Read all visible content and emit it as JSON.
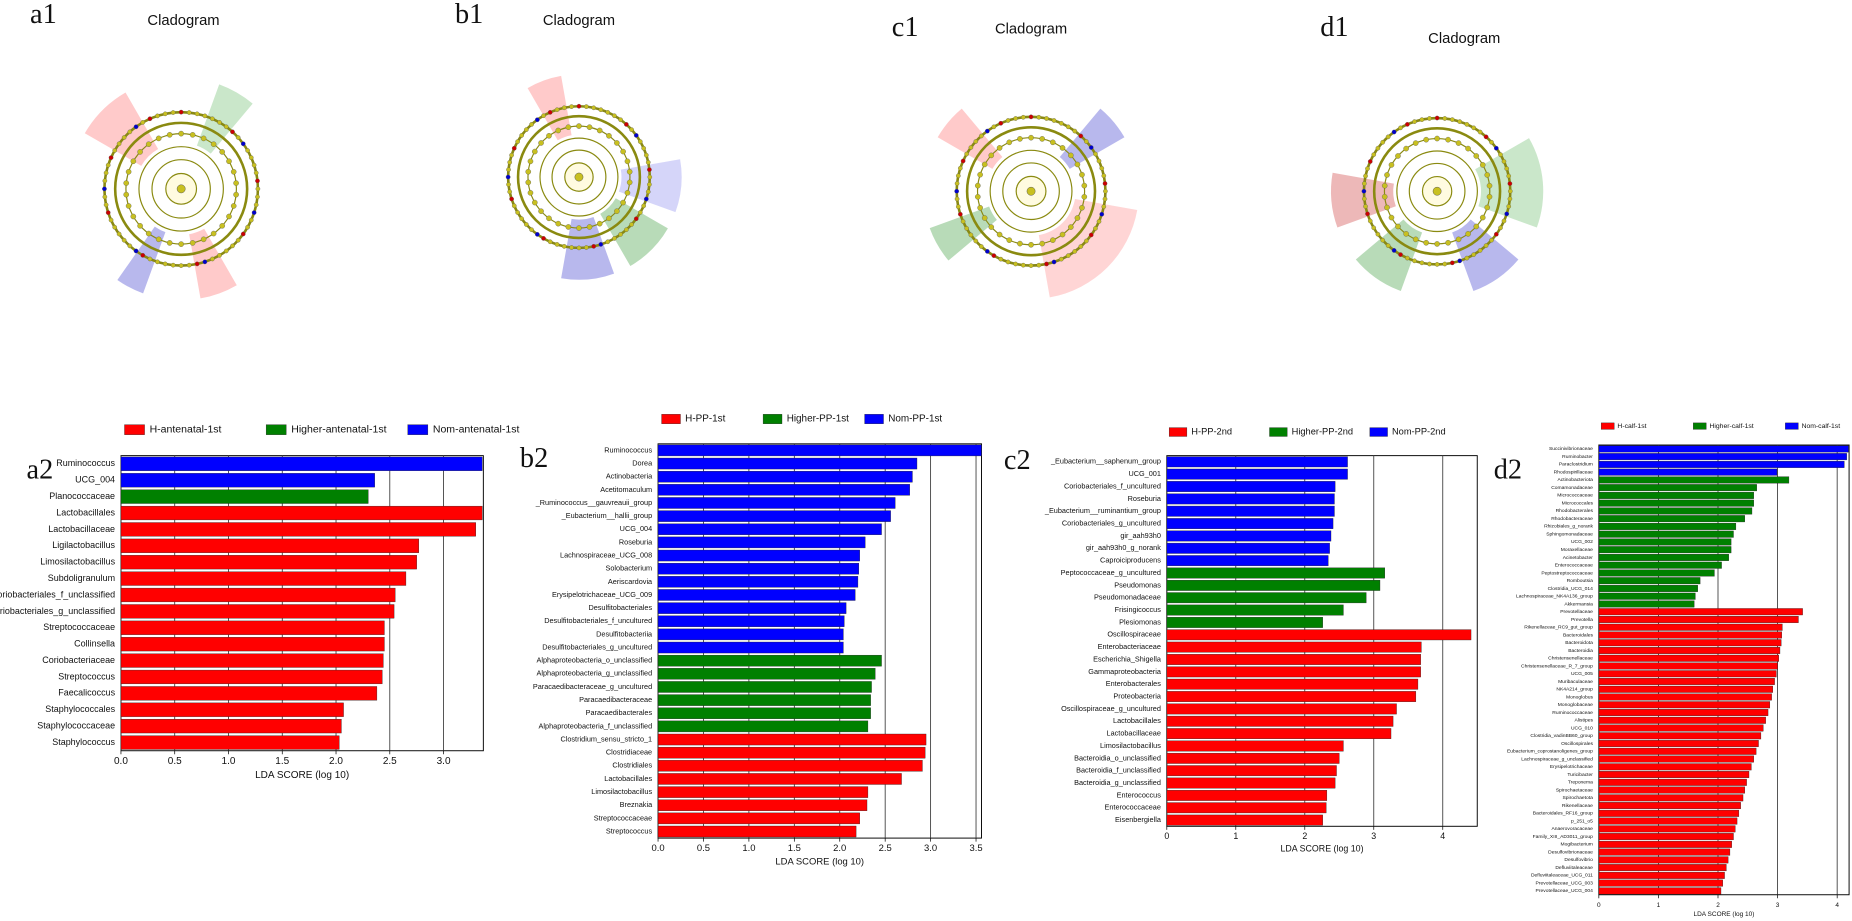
{
  "chart_data": [
    {
      "type": "cladogram",
      "panel": "a1",
      "title": "Cladogram"
    },
    {
      "type": "cladogram",
      "panel": "b1",
      "title": "Cladogram"
    },
    {
      "type": "cladogram",
      "panel": "c1",
      "title": "Cladogram"
    },
    {
      "type": "cladogram",
      "panel": "d1",
      "title": "Cladogram"
    },
    {
      "type": "hbar",
      "panel": "a2",
      "xlabel": "LDA SCORE (log 10)",
      "xlim": [
        0,
        3.37
      ],
      "xticks": [
        {
          "value": 0,
          "label": "0.0"
        },
        0.5,
        {
          "value": 1,
          "label": "1.0"
        },
        1.5,
        {
          "value": 2,
          "label": "2.0"
        },
        2.5,
        {
          "value": 3,
          "label": "3.0"
        }
      ],
      "grid": true,
      "series": [
        {
          "name": "Nom-antenatal-1st",
          "color": "#0000ff",
          "categories": [
            "Ruminococcus",
            "UCG_004"
          ],
          "values": [
            3.36,
            2.36
          ]
        },
        {
          "name": "Higher-antenatal-1st",
          "color": "#008000",
          "categories": [
            "Planococcaceae"
          ],
          "values": [
            2.3
          ]
        },
        {
          "name": "H-antenatal-1st",
          "color": "#ff0000",
          "categories": [
            "Lactobacillales",
            "Lactobacillaceae",
            "Ligilactobacillus",
            "Limosilactobacillus",
            "Subdoligranulum",
            "Coriobacteriales_f_unclassified",
            "Coriobacteriales_g_unclassified",
            "Streptococcaceae",
            "Collinsella",
            "Coriobacteriaceae",
            "Streptococcus",
            "Faecalicoccus",
            "Staphylococcales",
            "Staphylococcaceae",
            "Staphylococcus"
          ],
          "values": [
            3.36,
            3.3,
            2.77,
            2.75,
            2.65,
            2.55,
            2.54,
            2.45,
            2.45,
            2.44,
            2.43,
            2.38,
            2.07,
            2.05,
            2.03
          ]
        }
      ],
      "legend_order": [
        2,
        1,
        0
      ]
    },
    {
      "type": "hbar",
      "panel": "b2",
      "xlabel": "LDA SCORE (log 10)",
      "xlim": [
        0,
        3.56
      ],
      "xticks": [
        {
          "value": 0,
          "label": "0.0"
        },
        0.5,
        {
          "value": 1,
          "label": "1.0"
        },
        1.5,
        {
          "value": 2,
          "label": "2.0"
        },
        2.5,
        {
          "value": 3,
          "label": "3.0"
        },
        3.5
      ],
      "grid": true,
      "series": [
        {
          "name": "Nom-PP-1st",
          "color": "#0000ff",
          "categories": [
            "Ruminococcus",
            "Dorea",
            "Actinobacteria",
            "Acetitomaculum",
            "_Ruminococcus__gauvreauii_group",
            "_Eubacterium__hallii_group",
            "UCG_004",
            "Roseburia",
            "Lachnospiraceae_UCG_008",
            "Solobacterium",
            "Aeriscardovia",
            "Erysipelotrichaceae_UCG_009",
            "Desulfitobacteriales",
            "Desulfitobacteriales_f_uncultured",
            "Desulfitobacteriia",
            "Desulfitobacteriales_g_uncultured"
          ],
          "values": [
            3.56,
            2.85,
            2.8,
            2.77,
            2.61,
            2.56,
            2.46,
            2.28,
            2.22,
            2.21,
            2.2,
            2.17,
            2.07,
            2.05,
            2.04,
            2.04
          ]
        },
        {
          "name": "Higher-PP-1st",
          "color": "#008000",
          "categories": [
            "Alphaproteobacteria_o_unclassified",
            "Alphaproteobacteria_g_unclassified",
            "Paracaedibacteraceae_g_uncultured",
            "Paracaedibacteraceae",
            "Paracaedibacterales",
            "Alphaproteobacteria_f_unclassified"
          ],
          "values": [
            2.46,
            2.39,
            2.35,
            2.34,
            2.34,
            2.31
          ]
        },
        {
          "name": "H-PP-1st",
          "color": "#ff0000",
          "categories": [
            "Clostridium_sensu_stricto_1",
            "Clostridiaceae",
            "Clostridiales",
            "Lactobacillales",
            "Limosilactobacillus",
            "Breznakia",
            "Streptococcaceae",
            "Streptococcus"
          ],
          "values": [
            2.95,
            2.94,
            2.91,
            2.68,
            2.31,
            2.3,
            2.22,
            2.18
          ]
        }
      ],
      "legend_order": [
        2,
        1,
        0
      ]
    },
    {
      "type": "hbar",
      "panel": "c2",
      "xlabel": "LDA SCORE (log 10)",
      "xlim": [
        0,
        4.5
      ],
      "xticks": [
        0,
        1,
        2,
        3,
        4
      ],
      "grid": true,
      "series": [
        {
          "name": "Nom-PP-2nd",
          "color": "#0000ff",
          "categories": [
            "_Eubacterium__saphenum_group",
            "UCG_001",
            "Coriobacteriales_f_uncultured",
            "Roseburia",
            "_Eubacterium__ruminantium_group",
            "Coriobacteriales_g_uncultured",
            "gir_aah93h0",
            "gir_aah93h0_g_norank",
            "Caproiciproducens"
          ],
          "values": [
            2.62,
            2.62,
            2.44,
            2.43,
            2.43,
            2.41,
            2.38,
            2.36,
            2.34
          ]
        },
        {
          "name": "Higher-PP-2nd",
          "color": "#008000",
          "categories": [
            "Peptococcaceae_g_uncultured",
            "Pseudomonas",
            "Pseudomonadaceae",
            "Frisingicoccus",
            "Plesiomonas"
          ],
          "values": [
            3.16,
            3.09,
            2.89,
            2.56,
            2.26
          ]
        },
        {
          "name": "H-PP-2nd",
          "color": "#ff0000",
          "categories": [
            "Oscillospiraceae",
            "Enterobacteriaceae",
            "Escherichia_Shigella",
            "Gammaproteobacteria",
            "Enterobacterales",
            "Proteobacteria",
            "Oscillospiraceae_g_uncultured",
            "Lactobacillales",
            "Lactobacillaceae",
            "Limosilactobacillus",
            "Bacteroidia_o_unclassified",
            "Bacteroidia_f_unclassified",
            "Bacteroidia_g_unclassified",
            "Enterococcus",
            "Enterococcaceae",
            "Eisenbergiella"
          ],
          "values": [
            4.41,
            3.69,
            3.68,
            3.68,
            3.64,
            3.61,
            3.33,
            3.28,
            3.25,
            2.56,
            2.5,
            2.46,
            2.44,
            2.32,
            2.31,
            2.26
          ]
        }
      ],
      "legend_order": [
        2,
        1,
        0
      ]
    },
    {
      "type": "hbar",
      "panel": "d2",
      "xlabel": "LDA SCORE (log 10)",
      "xlim": [
        0,
        4.2
      ],
      "xticks": [
        0,
        1,
        2,
        3,
        4
      ],
      "grid": true,
      "series": [
        {
          "name": "Nom-calf-1st",
          "color": "#0000ff",
          "categories": [
            "Succinivibrionaceae",
            "Ruminobacter",
            "Paraclostridium",
            "Rhodospirillaceae"
          ],
          "values": [
            4.19,
            4.16,
            4.12,
            2.99
          ]
        },
        {
          "name": "Higher-calf-1st",
          "color": "#008000",
          "categories": [
            "Actinobacteriota",
            "Comamonadaceae",
            "Micrococcaceae",
            "Micrococcales",
            "Rhodobacterales",
            "Rhodobacteraceae",
            "Rhizobiales_g_norank",
            "Sphingomonadaceae",
            "UCG_002",
            "Moraxellaceae",
            "Acinetobacter",
            "Enterococcaceae",
            "Peptostreptococcaceae",
            "Romboutsia",
            "Clostridia_UCG_014",
            "Lachnospiraceae_NK4A136_group",
            "Akkermansia"
          ],
          "values": [
            3.19,
            2.65,
            2.6,
            2.6,
            2.57,
            2.45,
            2.3,
            2.26,
            2.22,
            2.22,
            2.18,
            2.06,
            1.94,
            1.7,
            1.66,
            1.62,
            1.6
          ]
        },
        {
          "name": "H-calf-1st",
          "color": "#ff0000",
          "categories": [
            "Prevotellaceae",
            "Prevotella",
            "Rikenellaceae_RC9_gut_group",
            "Bacteroidales",
            "Bacteroidota",
            "Bacteroidia",
            "Christensenellaceae",
            "Christensenellaceae_R_7_group",
            "UCG_005",
            "Muribaculaceae",
            "NK4A214_group",
            "Monoglobus",
            "Monoglobaceae",
            "Ruminococcaceae",
            "Alistipes",
            "UCG_010",
            "Clostridia_vadinBB60_group",
            "Oscillospirales",
            "Eubacterium_coprostanoligenes_group",
            "Lachnospiraceae_g_unclassified",
            "Erysipelotrichaceae",
            "Turicibacter",
            "Treponema",
            "Spirochaetaceae",
            "Spirochaetota",
            "Rikenellaceae",
            "Bacteroidales_RF16_group",
            "p_251_o5",
            "Anaerovoracaceae",
            "Family_XIII_AD3011_group",
            "Mogibacterium",
            "Desulfovibrionaceae",
            "Desulfovibrio",
            "Defluviitaleaceae",
            "Defluviitaleaceae_UCG_011",
            "Prevotellaceae_UCG_003",
            "Prevotellaceae_UCG_004"
          ],
          "values": [
            3.42,
            3.35,
            3.08,
            3.07,
            3.06,
            3.04,
            3.02,
            3.0,
            2.98,
            2.95,
            2.92,
            2.9,
            2.87,
            2.84,
            2.8,
            2.76,
            2.72,
            2.68,
            2.64,
            2.6,
            2.56,
            2.52,
            2.48,
            2.45,
            2.42,
            2.38,
            2.35,
            2.32,
            2.29,
            2.26,
            2.23,
            2.2,
            2.17,
            2.14,
            2.11,
            2.08,
            2.05
          ]
        }
      ],
      "legend_order": [
        2,
        1,
        0
      ]
    }
  ]
}
